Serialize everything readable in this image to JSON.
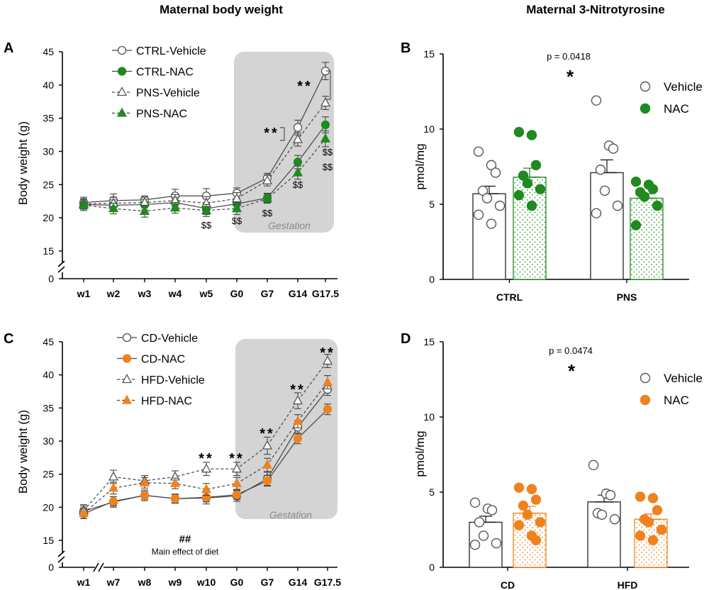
{
  "figure": {
    "left_column_title": "Maternal body weight",
    "right_column_title": "Maternal 3-Nitrotyrosine"
  },
  "colors": {
    "ctrl_fill": "#ffffff",
    "green": "#1f8a1f",
    "green_light": "#7fd07f",
    "orange": "#f0821e",
    "orange_light": "#f6b06a",
    "gestation_shade": "#d4d4d4",
    "axis": "#000000",
    "open_marker_stroke": "#555555"
  },
  "chart_data": [
    {
      "id": "A",
      "panel_label": "A",
      "type": "line",
      "ylabel": "Body weight (g)",
      "ylim": [
        0,
        45
      ],
      "y_axis_break": true,
      "y_ticks": [
        "0",
        "15",
        "20",
        "25",
        "30",
        "35",
        "40",
        "45"
      ],
      "categories": [
        "w1",
        "w2",
        "w3",
        "w4",
        "w5",
        "G0",
        "G7",
        "G14",
        "G17.5"
      ],
      "shaded_region": {
        "from": "G0",
        "to": "G17.5",
        "label": "Gestation"
      },
      "legend_position": "top-left",
      "series": [
        {
          "name": "CTRL-Vehicle",
          "marker": "circle",
          "fill": "open",
          "line": "solid",
          "values": [
            22.3,
            22.6,
            22.7,
            23.3,
            23.3,
            23.7,
            26.0,
            33.6,
            42.1
          ],
          "errors": [
            0.8,
            1.0,
            0.6,
            1.0,
            1.1,
            0.8,
            0.7,
            1.1,
            1.3
          ]
        },
        {
          "name": "CTRL-NAC",
          "marker": "circle",
          "fill": "green",
          "line": "solid",
          "values": [
            22.0,
            21.9,
            22.0,
            22.3,
            21.4,
            22.1,
            23.0,
            28.4,
            34.0
          ],
          "errors": [
            0.7,
            0.8,
            0.8,
            0.8,
            0.9,
            0.8,
            0.7,
            1.0,
            1.2
          ]
        },
        {
          "name": "PNS-Vehicle",
          "marker": "triangle",
          "fill": "open",
          "line": "dashed",
          "values": [
            22.1,
            22.2,
            22.3,
            22.6,
            22.2,
            22.9,
            25.6,
            31.8,
            37.3
          ],
          "errors": [
            0.8,
            0.9,
            0.8,
            0.9,
            1.0,
            0.9,
            0.8,
            1.0,
            1.0
          ]
        },
        {
          "name": "PNS-NAC",
          "marker": "triangle",
          "fill": "green",
          "line": "dashed",
          "values": [
            21.9,
            21.4,
            21.0,
            21.5,
            21.1,
            21.4,
            22.9,
            26.8,
            31.9
          ],
          "errors": [
            0.8,
            0.8,
            0.9,
            0.8,
            0.9,
            0.9,
            0.7,
            1.0,
            1.2
          ]
        }
      ],
      "annotations": [
        {
          "text": "**",
          "at": "G14"
        },
        {
          "text": "**",
          "at": "G17.5"
        },
        {
          "text": "$$",
          "at": "w5"
        },
        {
          "text": "$$",
          "at": "G0"
        },
        {
          "text": "$$",
          "at": "G7"
        },
        {
          "text": "$$",
          "at": "G14"
        },
        {
          "text": "$$",
          "at": "G17.5"
        },
        {
          "text": "$$",
          "at": "G17.5"
        }
      ]
    },
    {
      "id": "B",
      "panel_label": "B",
      "type": "bar",
      "ylabel": "pmol/mg",
      "ylim": [
        0,
        15
      ],
      "y_ticks": [
        "0",
        "5",
        "10",
        "15"
      ],
      "categories": [
        "CTRL",
        "PNS"
      ],
      "legend_position": "top-right",
      "series": [
        {
          "name": "Vehicle",
          "fill": "open",
          "values": [
            5.7,
            7.1
          ],
          "errors": [
            0.5,
            0.85
          ]
        },
        {
          "name": "NAC",
          "fill": "green",
          "values": [
            6.8,
            5.4
          ],
          "errors": [
            0.6,
            0.3
          ]
        }
      ],
      "points": [
        [
          [
            8.5,
            7.6,
            7.1,
            5.9,
            5.4,
            4.9,
            4.3,
            3.7
          ],
          [
            9.8,
            9.6,
            7.6,
            6.9,
            6.4,
            6.0,
            5.6,
            4.9
          ]
        ],
        [
          [
            11.9,
            8.9,
            8.7,
            7.3,
            5.9,
            4.9,
            4.4
          ],
          [
            6.5,
            6.3,
            6.0,
            5.8,
            5.5,
            4.9,
            3.6
          ]
        ]
      ],
      "p_text": "p = 0.0418",
      "sig_text": "*"
    },
    {
      "id": "C",
      "panel_label": "C",
      "type": "line",
      "ylabel": "Body weight (g)",
      "ylim": [
        0,
        45
      ],
      "y_axis_break": true,
      "y_ticks": [
        "0",
        "15",
        "20",
        "25",
        "30",
        "35",
        "40",
        "45"
      ],
      "categories": [
        "w1",
        "w7",
        "w8",
        "w9",
        "w10",
        "G0",
        "G7",
        "G14",
        "G17.5"
      ],
      "shaded_region": {
        "from": "G0",
        "to": "G17.5",
        "label": "Gestation"
      },
      "legend_position": "top-left",
      "series": [
        {
          "name": "CD-Vehicle",
          "marker": "circle",
          "fill": "open",
          "line": "solid",
          "values": [
            19.4,
            20.8,
            21.8,
            21.3,
            21.4,
            21.7,
            24.3,
            32.1,
            37.8
          ],
          "errors": [
            0.8,
            0.8,
            0.8,
            0.7,
            0.9,
            0.8,
            1.0,
            1.0,
            0.9
          ]
        },
        {
          "name": "CD-NAC",
          "marker": "circle",
          "fill": "orange",
          "line": "solid",
          "values": [
            19.0,
            20.9,
            21.8,
            21.3,
            21.5,
            21.9,
            24.0,
            30.4,
            34.8
          ],
          "errors": [
            0.7,
            0.7,
            0.6,
            0.6,
            0.7,
            0.7,
            0.8,
            0.8,
            0.8
          ]
        },
        {
          "name": "HFD-Vehicle",
          "marker": "triangle",
          "fill": "open",
          "line": "dashed",
          "values": [
            19.5,
            24.6,
            24.0,
            24.6,
            25.8,
            25.8,
            29.3,
            36.1,
            42.1
          ],
          "errors": [
            0.9,
            1.0,
            0.8,
            0.9,
            1.0,
            1.0,
            1.3,
            1.2,
            1.0
          ]
        },
        {
          "name": "HFD-NAC",
          "marker": "triangle",
          "fill": "orange",
          "line": "dashed",
          "values": [
            19.1,
            22.9,
            23.7,
            23.6,
            22.7,
            23.6,
            26.4,
            33.0,
            38.9
          ],
          "errors": [
            0.8,
            0.9,
            0.8,
            0.8,
            0.9,
            0.9,
            1.0,
            1.0,
            1.0
          ]
        }
      ],
      "annotations": [
        {
          "text": "**",
          "at": "w10"
        },
        {
          "text": "**",
          "at": "G0"
        },
        {
          "text": "**",
          "at": "G7"
        },
        {
          "text": "**",
          "at": "G14"
        },
        {
          "text": "**",
          "at": "G17.5"
        }
      ],
      "footnote_symbol": "##",
      "footnote_text": "Main effect of diet"
    },
    {
      "id": "D",
      "panel_label": "D",
      "type": "bar",
      "ylabel": "pmol/mg",
      "ylim": [
        0,
        15
      ],
      "y_ticks": [
        "0",
        "5",
        "10",
        "15"
      ],
      "categories": [
        "CD",
        "HFD"
      ],
      "legend_position": "top-right",
      "series": [
        {
          "name": "Vehicle",
          "fill": "open",
          "values": [
            3.0,
            4.35
          ],
          "errors": [
            0.4,
            0.45
          ]
        },
        {
          "name": "NAC",
          "fill": "orange",
          "values": [
            3.6,
            3.2
          ],
          "errors": [
            0.45,
            0.35
          ]
        }
      ],
      "points": [
        [
          [
            4.3,
            3.9,
            3.8,
            3.0,
            2.1,
            1.6,
            1.5
          ],
          [
            5.3,
            5.2,
            4.5,
            4.1,
            3.5,
            3.0,
            2.8,
            2.1,
            1.8
          ]
        ],
        [
          [
            6.8,
            4.9,
            4.8,
            3.6,
            3.5,
            3.2
          ],
          [
            4.7,
            4.6,
            3.8,
            3.2,
            3.0,
            2.5,
            2.1,
            1.8
          ]
        ]
      ],
      "p_text": "p = 0.0474",
      "sig_text": "*"
    }
  ]
}
